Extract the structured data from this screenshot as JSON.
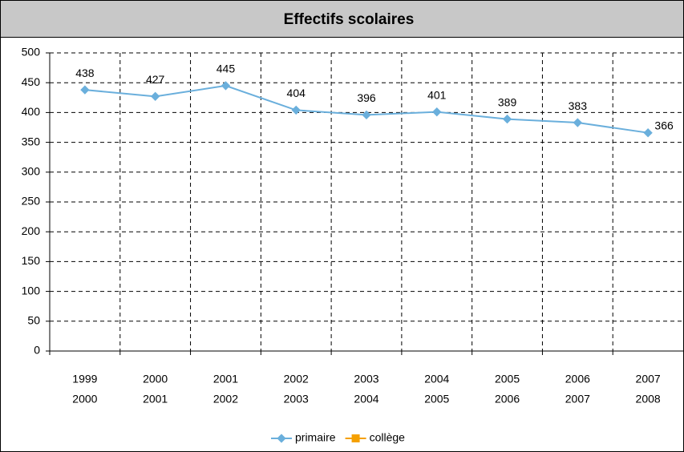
{
  "chart_data": {
    "type": "line",
    "title": "Effectifs scolaires",
    "categories": [
      [
        "1999",
        "2000"
      ],
      [
        "2000",
        "2001"
      ],
      [
        "2001",
        "2002"
      ],
      [
        "2002",
        "2003"
      ],
      [
        "2003",
        "2004"
      ],
      [
        "2004",
        "2005"
      ],
      [
        "2005",
        "2006"
      ],
      [
        "2006",
        "2007"
      ],
      [
        "2007",
        "2008"
      ]
    ],
    "series": [
      {
        "name": "primaire",
        "color": "#6aafdc",
        "values": [
          438,
          427,
          445,
          404,
          396,
          401,
          389,
          383,
          366
        ]
      },
      {
        "name": "collège",
        "color": "#f5a000",
        "values": [
          null,
          null,
          null,
          null,
          null,
          null,
          null,
          null,
          null
        ]
      }
    ],
    "ylim": [
      0,
      500
    ],
    "yticks": [
      0,
      50,
      100,
      150,
      200,
      250,
      300,
      350,
      400,
      450,
      500
    ],
    "grid": true,
    "legend": "bottom"
  }
}
